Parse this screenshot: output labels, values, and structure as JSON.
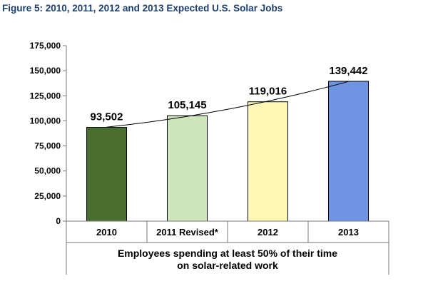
{
  "figure_title": "Figure 5: 2010, 2011, 2012 and 2013 Expected U.S. Solar Jobs",
  "chart_data": {
    "type": "bar",
    "title": "Figure 5: 2010, 2011, 2012 and 2013 Expected U.S. Solar Jobs",
    "categories": [
      "2010",
      "2011 Revised*",
      "2012",
      "2013"
    ],
    "values": [
      93502,
      105145,
      119016,
      139442
    ],
    "value_labels": [
      "93,502",
      "105,145",
      "119,016",
      "139,442"
    ],
    "bar_colors": [
      "#4a6e2e",
      "#cfe6bd",
      "#fdf9b4",
      "#6f95e2"
    ],
    "xlabel": "Employees spending at least 50% of their time on solar-related work",
    "xlabel_lines": [
      "Employees spending at least 50% of their time",
      "on solar-related work"
    ],
    "ylabel": "",
    "ylim": [
      0,
      175000
    ],
    "yticks": [
      0,
      25000,
      50000,
      75000,
      100000,
      125000,
      150000,
      175000
    ],
    "ytick_labels": [
      "0",
      "25,000",
      "50,000",
      "75,000",
      "100,000",
      "125,000",
      "150,000",
      "175,000"
    ],
    "trendline": true,
    "grid": false,
    "legend": "none"
  }
}
